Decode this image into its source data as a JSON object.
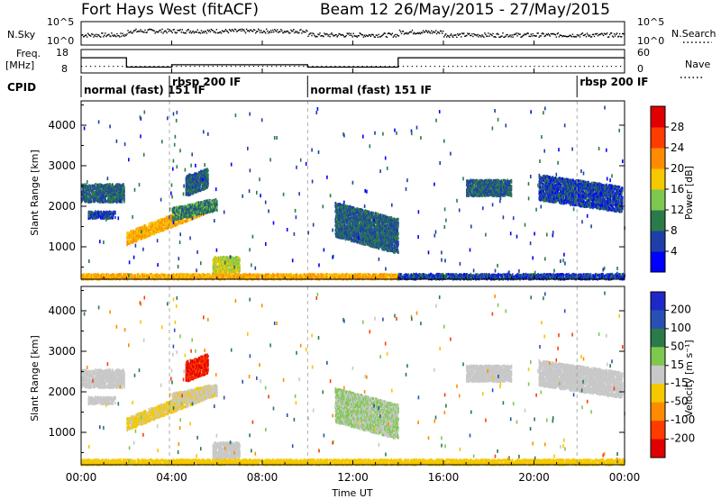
{
  "header": {
    "title": "Fort Hays West (fitACF)",
    "beam": "Beam 12",
    "date_range": "26/May/2015 - 27/May/2015"
  },
  "top_panels": {
    "nsky_label": "N.Sky",
    "nsearch_label": "N.Search",
    "nsky_ticks": [
      "10^5",
      "10^0"
    ],
    "nsearch_ticks": [
      "10^5",
      "10^0"
    ],
    "freq_label_line1": "Freq.",
    "freq_label_line2": "[MHz]",
    "freq_ticks": [
      "18",
      "8"
    ],
    "nave_label": "Nave",
    "nave_ticks": [
      "60",
      "0"
    ],
    "cpid_label": "CPID"
  },
  "cpid_segments": [
    {
      "label": "normal (fast) 151 IF",
      "start_h": 0,
      "end_h": 3.9
    },
    {
      "label": "rbsp 200 IF",
      "start_h": 3.9,
      "end_h": 10.0
    },
    {
      "label": "normal (fast) 151 IF",
      "start_h": 10.0,
      "end_h": 21.9
    },
    {
      "label": "rbsp 200 IF",
      "start_h": 21.9,
      "end_h": 24.0
    }
  ],
  "time_axis": {
    "label": "Time UT",
    "ticks": [
      "00:00",
      "04:00",
      "08:00",
      "12:00",
      "16:00",
      "20:00",
      "00:00"
    ]
  },
  "power_panel": {
    "ylabel": "Slant Range [km]",
    "yticks": [
      "1000",
      "2000",
      "3000",
      "4000"
    ],
    "colorbar_label": "Power [dB]",
    "colorbar_ticks": [
      "4",
      "8",
      "12",
      "16",
      "20",
      "24",
      "28"
    ],
    "colors": [
      "#0000ff",
      "#1e3fa8",
      "#2a7a4a",
      "#7ec850",
      "#f5c800",
      "#ff8c00",
      "#ff3c00",
      "#e00000"
    ]
  },
  "velocity_panel": {
    "ylabel": "Slant Range [km]",
    "yticks": [
      "1000",
      "2000",
      "3000",
      "4000"
    ],
    "colorbar_label": "Velocity [m s⁻¹]",
    "colorbar_ticks": [
      "200",
      "100",
      "50",
      "15",
      "-15",
      "-50",
      "-100",
      "-200"
    ],
    "colors": [
      "#1e28c8",
      "#2850b4",
      "#2a7a4a",
      "#7ec850",
      "#c8c8c8",
      "#f5c800",
      "#ff8c00",
      "#ff3c00",
      "#e00000"
    ]
  },
  "chart_data": {
    "type": "heatmap",
    "title": "Fort Hays West (fitACF)",
    "subtitle": "Beam 12 26/May/2015 - 27/May/2015",
    "xlabel": "Time UT",
    "ylabel": "Slant Range [km]",
    "xlim_hours": [
      0,
      24
    ],
    "ylim_km": [
      200,
      4600
    ],
    "x_ticks": [
      "00:00",
      "04:00",
      "08:00",
      "12:00",
      "16:00",
      "20:00",
      "00:00"
    ],
    "y_ticks": [
      1000,
      2000,
      3000,
      4000
    ],
    "frequency_mhz": [
      {
        "start_h": 0,
        "end_h": 2.0,
        "value": 14.5
      },
      {
        "start_h": 2.0,
        "end_h": 4.0,
        "value": 10.5
      },
      {
        "start_h": 4.0,
        "end_h": 10.0,
        "value": 11.5
      },
      {
        "start_h": 10.0,
        "end_h": 14.0,
        "value": 10.5
      },
      {
        "start_h": 14.0,
        "end_h": 24.0,
        "value": 14.5
      }
    ],
    "echo_regions": [
      {
        "name": "A",
        "t0": 0.0,
        "t1": 1.9,
        "r0": 2150,
        "r1": 2600,
        "slope": 0,
        "power_db": 8,
        "velocity": 0
      },
      {
        "name": "B",
        "t0": 0.3,
        "t1": 1.5,
        "r0": 1750,
        "r1": 1950,
        "slope": 0,
        "power_db": 6,
        "velocity": 0
      },
      {
        "name": "C",
        "t0": 2.0,
        "t1": 5.5,
        "r0": 1100,
        "r1": 1400,
        "slope": 220,
        "power_db": 20,
        "velocity": -20
      },
      {
        "name": "D",
        "t0": 4.0,
        "t1": 6.0,
        "r0": 1700,
        "r1": 2000,
        "slope": 120,
        "power_db": 10,
        "velocity": -10
      },
      {
        "name": "E",
        "t0": 4.6,
        "t1": 5.6,
        "r0": 2300,
        "r1": 2800,
        "slope": 200,
        "power_db": 8,
        "velocity": -200
      },
      {
        "name": "F",
        "t0": 5.8,
        "t1": 7.0,
        "r0": 400,
        "r1": 800,
        "slope": 0,
        "power_db": 16,
        "velocity": 0
      },
      {
        "name": "G",
        "t0": 0.0,
        "t1": 14.0,
        "r0": 250,
        "r1": 400,
        "slope": 0,
        "power_db": 20,
        "velocity": -30
      },
      {
        "name": "H",
        "t0": 11.2,
        "t1": 14.0,
        "r0": 1300,
        "r1": 2150,
        "slope": -150,
        "power_db": 8,
        "velocity": 15
      },
      {
        "name": "I",
        "t0": 17.0,
        "t1": 19.0,
        "r0": 2300,
        "r1": 2700,
        "slope": 0,
        "power_db": 8,
        "velocity": 0
      },
      {
        "name": "J",
        "t0": 20.2,
        "t1": 23.9,
        "r0": 2200,
        "r1": 2850,
        "slope": -80,
        "power_db": 6,
        "velocity": 0
      },
      {
        "name": "K",
        "t0": 14.0,
        "t1": 24.0,
        "r0": 250,
        "r1": 380,
        "slope": 0,
        "power_db": 6,
        "velocity": -30
      }
    ]
  }
}
